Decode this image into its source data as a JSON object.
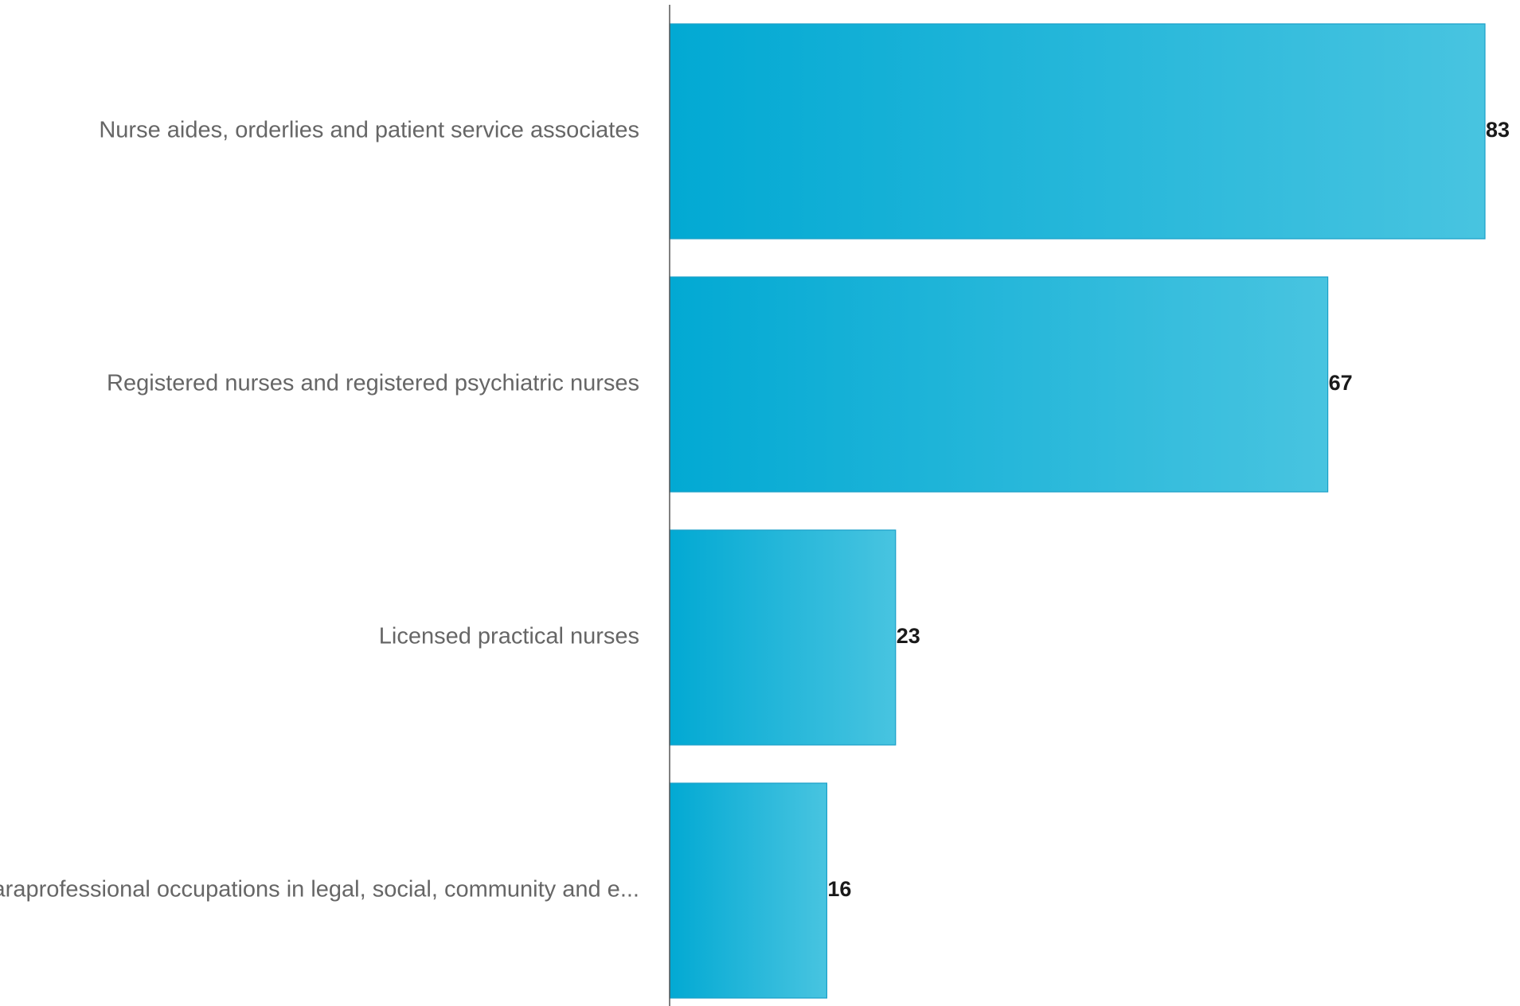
{
  "chart_data": {
    "type": "bar",
    "orientation": "horizontal",
    "categories": [
      "Nurse aides, orderlies and patient service associates",
      "Registered nurses and registered psychiatric nurses",
      "Licensed practical nurses",
      "Paraprofessional occupations in legal, social, community and e..."
    ],
    "values": [
      83,
      67,
      23,
      16
    ],
    "title": "",
    "xlabel": "",
    "ylabel": "",
    "xlim": [
      0,
      83
    ],
    "grid": false,
    "legend": "none",
    "data_labels": true,
    "colors": {
      "bar_gradient_start": "#02a9d3",
      "bar_gradient_end": "#48c4e0",
      "bar_stroke": "#1a9fc8",
      "label_text": "#666666",
      "value_text": "#1a1a1a",
      "axis": "#555555"
    }
  }
}
